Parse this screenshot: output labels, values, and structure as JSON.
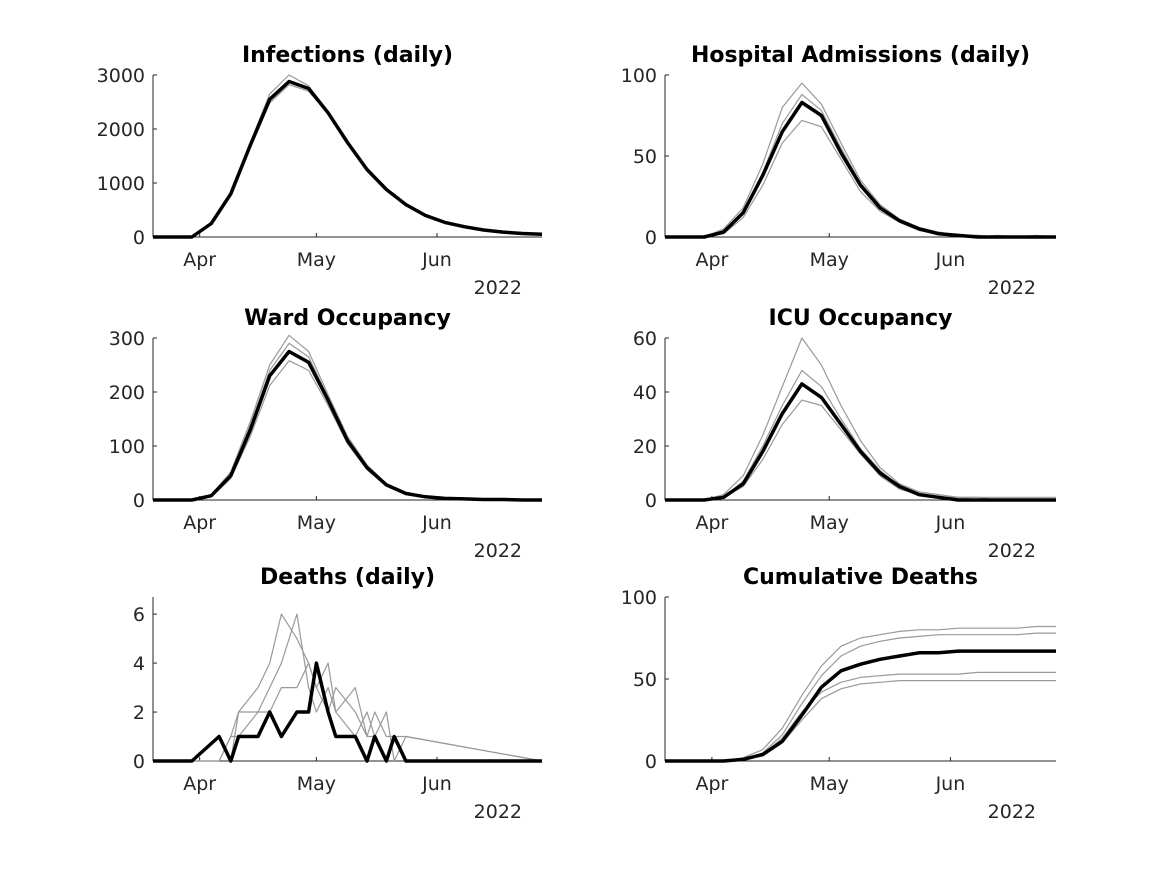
{
  "chart_data": [
    {
      "type": "line",
      "title": "Infections (daily)",
      "xlabel": "",
      "ylabel": "",
      "ylim": [
        0,
        3000
      ],
      "yticks": [
        0,
        1000,
        2000,
        3000
      ],
      "xticks": [
        "Apr",
        "May",
        "Jun"
      ],
      "year_label": "2022",
      "x": [
        0,
        10,
        15,
        20,
        25,
        30,
        35,
        40,
        45,
        50,
        55,
        60,
        65,
        70,
        75,
        80,
        85,
        90,
        95,
        100
      ],
      "series": [
        {
          "role": "mean",
          "color": "#000000",
          "values": [
            0,
            0,
            250,
            800,
            1700,
            2550,
            2880,
            2750,
            2300,
            1750,
            1250,
            880,
            600,
            400,
            270,
            190,
            130,
            90,
            65,
            50
          ]
        },
        {
          "role": "run",
          "color": "#999999",
          "values": [
            0,
            0,
            230,
            780,
            1750,
            2650,
            3000,
            2800,
            2320,
            1770,
            1270,
            890,
            610,
            410,
            280,
            195,
            135,
            95,
            70,
            55
          ]
        },
        {
          "role": "run",
          "color": "#999999",
          "values": [
            0,
            0,
            260,
            820,
            1650,
            2480,
            2820,
            2700,
            2280,
            1730,
            1230,
            870,
            590,
            395,
            265,
            185,
            128,
            88,
            62,
            48
          ]
        }
      ]
    },
    {
      "type": "line",
      "title": "Hospital Admissions (daily)",
      "xlabel": "",
      "ylabel": "",
      "ylim": [
        0,
        100
      ],
      "yticks": [
        0,
        50,
        100
      ],
      "xticks": [
        "Apr",
        "May",
        "Jun"
      ],
      "year_label": "2022",
      "x": [
        0,
        10,
        15,
        20,
        25,
        30,
        35,
        40,
        45,
        50,
        55,
        60,
        65,
        70,
        75,
        80,
        85,
        90,
        95,
        100
      ],
      "series": [
        {
          "role": "mean",
          "color": "#000000",
          "values": [
            0,
            0,
            3,
            15,
            38,
            65,
            83,
            75,
            52,
            32,
            18,
            10,
            5,
            2,
            1,
            0,
            0,
            0,
            0,
            0
          ]
        },
        {
          "role": "run",
          "color": "#999999",
          "values": [
            0,
            0,
            5,
            18,
            45,
            80,
            95,
            82,
            58,
            35,
            20,
            11,
            6,
            3,
            1,
            1,
            0,
            0,
            0,
            0
          ]
        },
        {
          "role": "run",
          "color": "#999999",
          "values": [
            0,
            0,
            2,
            12,
            32,
            58,
            72,
            68,
            48,
            28,
            16,
            9,
            4,
            2,
            1,
            0,
            1,
            0,
            0,
            0
          ]
        },
        {
          "role": "run",
          "color": "#999999",
          "values": [
            0,
            0,
            4,
            16,
            40,
            70,
            88,
            78,
            55,
            33,
            19,
            10,
            5,
            3,
            1,
            1,
            0,
            0,
            1,
            0
          ]
        }
      ]
    },
    {
      "type": "line",
      "title": "Ward Occupancy",
      "xlabel": "",
      "ylabel": "",
      "ylim": [
        0,
        300
      ],
      "yticks": [
        0,
        100,
        200,
        300
      ],
      "xticks": [
        "Apr",
        "May",
        "Jun"
      ],
      "year_label": "2022",
      "x": [
        0,
        10,
        15,
        20,
        25,
        30,
        35,
        40,
        45,
        50,
        55,
        60,
        65,
        70,
        75,
        80,
        85,
        90,
        95,
        100
      ],
      "series": [
        {
          "role": "mean",
          "color": "#000000",
          "values": [
            0,
            0,
            8,
            45,
            130,
            230,
            275,
            255,
            185,
            110,
            60,
            28,
            12,
            6,
            3,
            2,
            1,
            1,
            0,
            0
          ]
        },
        {
          "role": "run",
          "color": "#999999",
          "values": [
            0,
            0,
            10,
            52,
            145,
            250,
            305,
            275,
            195,
            118,
            65,
            30,
            14,
            7,
            4,
            2,
            1,
            1,
            1,
            0
          ]
        },
        {
          "role": "run",
          "color": "#999999",
          "values": [
            0,
            0,
            6,
            40,
            118,
            212,
            258,
            240,
            175,
            104,
            56,
            26,
            11,
            5,
            3,
            2,
            1,
            0,
            0,
            0
          ]
        },
        {
          "role": "run",
          "color": "#999999",
          "values": [
            0,
            0,
            9,
            48,
            138,
            240,
            290,
            265,
            190,
            114,
            62,
            29,
            13,
            6,
            3,
            2,
            1,
            1,
            0,
            0
          ]
        }
      ]
    },
    {
      "type": "line",
      "title": "ICU Occupancy",
      "xlabel": "",
      "ylabel": "",
      "ylim": [
        0,
        60
      ],
      "yticks": [
        0,
        20,
        40,
        60
      ],
      "xticks": [
        "Apr",
        "May",
        "Jun"
      ],
      "year_label": "2022",
      "x": [
        0,
        10,
        15,
        20,
        25,
        30,
        35,
        40,
        45,
        50,
        55,
        60,
        65,
        70,
        75,
        80,
        85,
        90,
        95,
        100
      ],
      "series": [
        {
          "role": "mean",
          "color": "#000000",
          "values": [
            0,
            0,
            1,
            6,
            18,
            32,
            43,
            38,
            28,
            18,
            10,
            5,
            2,
            1,
            0,
            0,
            0,
            0,
            0,
            0
          ]
        },
        {
          "role": "run",
          "color": "#999999",
          "values": [
            0,
            0,
            2,
            9,
            24,
            42,
            60,
            50,
            35,
            22,
            12,
            6,
            3,
            2,
            1,
            1,
            1,
            1,
            1,
            1
          ]
        },
        {
          "role": "run",
          "color": "#999999",
          "values": [
            0,
            0,
            1,
            5,
            15,
            28,
            37,
            35,
            26,
            17,
            9,
            4,
            2,
            1,
            1,
            0,
            0,
            0,
            0,
            0
          ]
        },
        {
          "role": "run",
          "color": "#999999",
          "values": [
            0,
            0,
            1,
            7,
            20,
            35,
            48,
            42,
            30,
            19,
            11,
            5,
            2,
            1,
            1,
            1,
            0,
            0,
            0,
            0
          ]
        }
      ]
    },
    {
      "type": "line",
      "title": "Deaths (daily)",
      "xlabel": "",
      "ylabel": "",
      "ylim": [
        0,
        6.7
      ],
      "yticks": [
        0,
        2,
        4,
        6
      ],
      "xticks": [
        "Apr",
        "May",
        "Jun"
      ],
      "year_label": "2022",
      "x": [
        0,
        10,
        17,
        20,
        22,
        27,
        30,
        33,
        37,
        40,
        42,
        45,
        47,
        52,
        55,
        57,
        60,
        62,
        65,
        100
      ],
      "series": [
        {
          "role": "mean",
          "color": "#000000",
          "values": [
            0,
            0,
            1,
            0,
            1,
            1,
            2,
            1,
            2,
            2,
            4,
            2,
            1,
            1,
            0,
            1,
            0,
            1,
            0,
            0
          ]
        },
        {
          "role": "run",
          "color": "#999999",
          "values": [
            0,
            0,
            0,
            1,
            2,
            3,
            4,
            6,
            5,
            4,
            3,
            4,
            2,
            3,
            1,
            2,
            1,
            1,
            0,
            0
          ]
        },
        {
          "role": "run",
          "color": "#999999",
          "values": [
            0,
            0,
            1,
            0,
            2,
            2,
            3,
            4,
            6,
            3,
            2,
            3,
            2,
            1,
            2,
            1,
            0,
            1,
            1,
            0
          ]
        },
        {
          "role": "run",
          "color": "#999999",
          "values": [
            0,
            0,
            0,
            1,
            1,
            2,
            2,
            3,
            3,
            4,
            3,
            2,
            3,
            2,
            1,
            1,
            2,
            0,
            1,
            0
          ]
        }
      ]
    },
    {
      "type": "line",
      "title": "Cumulative Deaths",
      "xlabel": "",
      "ylabel": "",
      "ylim": [
        0,
        100
      ],
      "yticks": [
        0,
        50,
        100
      ],
      "xticks": [
        "Apr",
        "May",
        "Jun"
      ],
      "year_label": "2022",
      "x": [
        0,
        10,
        15,
        20,
        25,
        30,
        35,
        40,
        45,
        50,
        55,
        60,
        65,
        70,
        75,
        80,
        85,
        90,
        95,
        100
      ],
      "series": [
        {
          "role": "mean",
          "color": "#000000",
          "values": [
            0,
            0,
            0,
            1,
            4,
            12,
            28,
            45,
            55,
            59,
            62,
            64,
            66,
            66,
            67,
            67,
            67,
            67,
            67,
            67
          ]
        },
        {
          "role": "run",
          "color": "#999999",
          "values": [
            0,
            0,
            0,
            2,
            7,
            20,
            40,
            58,
            70,
            75,
            77,
            79,
            80,
            80,
            81,
            81,
            81,
            81,
            82,
            82
          ]
        },
        {
          "role": "run",
          "color": "#999999",
          "values": [
            0,
            0,
            0,
            1,
            5,
            16,
            35,
            52,
            64,
            70,
            73,
            75,
            76,
            77,
            77,
            77,
            77,
            77,
            78,
            78
          ]
        },
        {
          "role": "run",
          "color": "#999999",
          "values": [
            0,
            0,
            0,
            1,
            4,
            14,
            30,
            42,
            48,
            51,
            52,
            53,
            53,
            53,
            53,
            54,
            54,
            54,
            54,
            54
          ]
        },
        {
          "role": "run",
          "color": "#999999",
          "values": [
            0,
            0,
            0,
            1,
            3,
            11,
            25,
            38,
            44,
            47,
            48,
            49,
            49,
            49,
            49,
            49,
            49,
            49,
            49,
            49
          ]
        }
      ]
    }
  ]
}
